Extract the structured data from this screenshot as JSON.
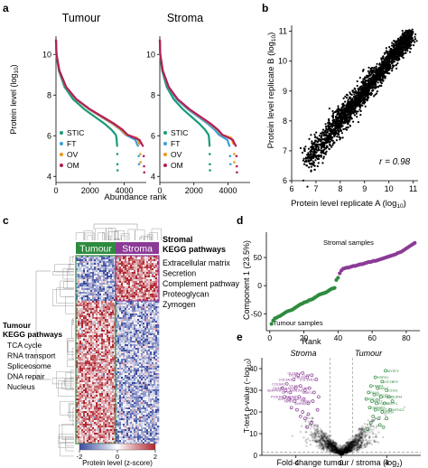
{
  "panels": {
    "a": {
      "label": "a"
    },
    "b": {
      "label": "b"
    },
    "c": {
      "label": "c"
    },
    "d": {
      "label": "d"
    },
    "e": {
      "label": "e"
    }
  },
  "colors": {
    "STIC": "#1a9a7a",
    "FT": "#3aa0d8",
    "OV": "#e8961e",
    "OM": "#b01f5a",
    "tumour": "#2e8b3e",
    "stroma": "#8b3a96",
    "heat_low": "#3a4ba0",
    "heat_mid": "#ffffff",
    "heat_high": "#b0252f"
  },
  "chart_data": [
    {
      "panel": "a",
      "type": "line",
      "subplots": [
        {
          "title": "Tumour",
          "series_end_rank": {
            "STIC": 4300,
            "FT": 5000,
            "OV": 5050,
            "OM": 5150
          }
        },
        {
          "title": "Stroma",
          "series_end_rank": {
            "STIC": 3500,
            "FT": 4250,
            "OV": 4450,
            "OM": 4500
          }
        }
      ],
      "ylabel": "Protein level (log",
      "ylabel_sub": "10",
      "ylabel_end": ")",
      "xlabel": "Abundance rank",
      "yticks": [
        4,
        6,
        8,
        10
      ],
      "xticks": [
        0,
        2000,
        4000
      ],
      "xlim": [
        0,
        5300
      ],
      "ylim": [
        3.7,
        10.9
      ],
      "curve": [
        [
          0,
          10.7
        ],
        [
          30,
          10.0
        ],
        [
          200,
          9.2
        ],
        [
          600,
          8.4
        ],
        [
          1200,
          7.8
        ],
        [
          2000,
          7.3
        ],
        [
          2800,
          6.9
        ],
        [
          3400,
          6.6
        ],
        [
          3900,
          6.3
        ],
        [
          4200,
          6.05
        ]
      ],
      "tails": {
        "STIC": [
          [
            4250,
            5.9
          ],
          [
            4300,
            5.5
          ],
          [
            4310,
            5.1
          ],
          [
            4320,
            4.6
          ],
          [
            4330,
            4.3
          ]
        ],
        "FT": [
          [
            4800,
            5.8
          ],
          [
            4950,
            5.5
          ],
          [
            5000,
            5.0
          ],
          [
            5020,
            4.6
          ]
        ],
        "OV": [
          [
            4850,
            5.9
          ],
          [
            5000,
            5.6
          ],
          [
            5050,
            5.1
          ],
          [
            5060,
            4.7
          ]
        ],
        "OM": [
          [
            4900,
            5.8
          ],
          [
            5100,
            5.5
          ],
          [
            5150,
            5.0
          ],
          [
            5170,
            4.5
          ],
          [
            5180,
            4.2
          ]
        ]
      },
      "legend": [
        "STIC",
        "FT",
        "OV",
        "OM"
      ],
      "legend_position": "bottom-left"
    },
    {
      "panel": "b",
      "type": "scatter",
      "xlabel": "Protein level replicate A (log",
      "xlabel_sub": "10",
      "xlabel_end": ")",
      "ylabel": "Protein level replicate B (log",
      "ylabel_sub": "10",
      "ylabel_end": ")",
      "xticks": [
        6,
        7,
        8,
        9,
        10,
        11
      ],
      "yticks": [
        6,
        7,
        8,
        9,
        10,
        11
      ],
      "xlim": [
        6,
        11.2
      ],
      "ylim": [
        6,
        11.2
      ],
      "annotation": "r = 0.98",
      "trend": {
        "from": 6.6,
        "to": 10.9,
        "spread": 0.2
      }
    },
    {
      "panel": "c",
      "type": "heatmap",
      "groups": [
        "Tumour",
        "Stroma"
      ],
      "stromal_title": "Stromal",
      "stromal_title2": "KEGG pathways",
      "stromal_pathways": [
        "Extracellular matrix",
        "Secretion",
        "Complement pathway",
        "Proteoglycan",
        "Zymogen"
      ],
      "tumour_title": "Tumour",
      "tumour_title2": "KEGG pathways",
      "tumour_pathways": [
        "TCA cycle",
        "RNA transport",
        "Spliceosome",
        "DNA repair",
        "Nucleus"
      ],
      "colorbar_ticks": [
        -2,
        0,
        2
      ],
      "colorbar_label": "Protein level (z-score)"
    },
    {
      "panel": "d",
      "type": "scatter",
      "ylabel": "Component 1 (23.5%)",
      "xlabel": "Rank",
      "xticks": [
        0,
        20,
        40,
        60,
        80
      ],
      "yticks": [
        -50,
        0,
        50
      ],
      "xlim": [
        -2,
        88
      ],
      "ylim": [
        -80,
        95
      ],
      "annotations": [
        "Stromal samples",
        "Tumour samples"
      ],
      "tumour_points": [
        [
          1,
          -68
        ],
        [
          2,
          -62
        ],
        [
          3,
          -58
        ],
        [
          4,
          -57
        ],
        [
          5,
          -55
        ],
        [
          6,
          -54
        ],
        [
          7,
          -52
        ],
        [
          8,
          -50
        ],
        [
          9,
          -48
        ],
        [
          10,
          -46
        ],
        [
          11,
          -45
        ],
        [
          12,
          -44
        ],
        [
          13,
          -43
        ],
        [
          14,
          -41
        ],
        [
          15,
          -39
        ],
        [
          16,
          -37
        ],
        [
          17,
          -35
        ],
        [
          18,
          -33
        ],
        [
          19,
          -32
        ],
        [
          20,
          -30
        ],
        [
          21,
          -29
        ],
        [
          22,
          -28
        ],
        [
          23,
          -26
        ],
        [
          24,
          -25
        ],
        [
          25,
          -24
        ],
        [
          26,
          -22
        ],
        [
          27,
          -20
        ],
        [
          28,
          -18
        ],
        [
          29,
          -16
        ],
        [
          30,
          -15
        ],
        [
          31,
          -14
        ],
        [
          32,
          -13
        ],
        [
          33,
          -12
        ],
        [
          34,
          -10
        ],
        [
          35,
          -8
        ],
        [
          36,
          -6
        ],
        [
          37,
          -5
        ],
        [
          38,
          -4
        ],
        [
          39,
          10
        ],
        [
          40,
          14
        ]
      ],
      "stroma_points": [
        [
          41,
          22
        ],
        [
          42,
          27
        ],
        [
          43,
          30
        ],
        [
          44,
          31
        ],
        [
          45,
          32
        ],
        [
          46,
          32
        ],
        [
          47,
          33
        ],
        [
          48,
          34
        ],
        [
          49,
          35
        ],
        [
          50,
          35
        ],
        [
          51,
          36
        ],
        [
          52,
          37
        ],
        [
          53,
          38
        ],
        [
          54,
          38
        ],
        [
          55,
          39
        ],
        [
          56,
          40
        ],
        [
          57,
          41
        ],
        [
          58,
          42
        ],
        [
          59,
          42
        ],
        [
          60,
          43
        ],
        [
          61,
          44
        ],
        [
          62,
          44
        ],
        [
          63,
          45
        ],
        [
          64,
          46
        ],
        [
          65,
          47
        ],
        [
          66,
          48
        ],
        [
          67,
          49
        ],
        [
          68,
          50
        ],
        [
          69,
          51
        ],
        [
          70,
          52
        ],
        [
          71,
          53
        ],
        [
          72,
          54
        ],
        [
          73,
          55
        ],
        [
          74,
          56
        ],
        [
          75,
          58
        ],
        [
          76,
          59
        ],
        [
          77,
          60
        ],
        [
          78,
          62
        ],
        [
          79,
          64
        ],
        [
          80,
          66
        ],
        [
          81,
          68
        ],
        [
          82,
          70
        ],
        [
          83,
          72
        ],
        [
          84,
          74
        ],
        [
          85,
          76
        ]
      ]
    },
    {
      "panel": "e",
      "type": "scatter",
      "xlabel": "Fold change tumour / stroma (log",
      "xlabel_sub": "2",
      "xlabel_end": ")",
      "ylabel": "T-test p-value (−log",
      "ylabel_sub": "10",
      "ylabel_end": ")",
      "xticks": [
        -4,
        0,
        4
      ],
      "yticks": [
        0,
        10,
        20,
        30,
        40
      ],
      "xlim": [
        -7,
        7
      ],
      "ylim": [
        0,
        45
      ],
      "group_titles": [
        "Stroma",
        "Tumour"
      ],
      "stroma_labels": [
        "COL6A2",
        "COL6A1",
        "DCN",
        "OLFML3",
        "FBLN1",
        "LUM",
        "COL14A1",
        "OGN",
        "SERPINF1",
        "DPT",
        "COL6A3",
        "VCAN",
        "EMILIN1",
        "VIM",
        "MMP2",
        "POSTN",
        "ASPN",
        "FBN1",
        "ABI3BP",
        "OLFML1",
        "MXRA5",
        "THBS2"
      ],
      "tumour_labels": [
        "MYEF2",
        "HSPD1",
        "IGF2BP2",
        "FABP4",
        "MAL2",
        "CDH1",
        "PAX8",
        "MUC16",
        "HSPE1",
        "CLDN4",
        "EPCAM",
        "KRT7",
        "FOLR1",
        "ESRP1",
        "CRABP2",
        "ASRGL1",
        "MSLN",
        "WFDC2"
      ],
      "stroma_points": [
        [
          -4.8,
          33
        ],
        [
          -4.2,
          35
        ],
        [
          -3.8,
          37
        ],
        [
          -3.4,
          38
        ],
        [
          -3.0,
          36
        ],
        [
          -2.6,
          37
        ],
        [
          -2.2,
          35
        ],
        [
          -5.2,
          31
        ],
        [
          -4.9,
          30
        ],
        [
          -4.5,
          29
        ],
        [
          -4.0,
          31
        ],
        [
          -3.6,
          32
        ],
        [
          -3.2,
          30
        ],
        [
          -2.8,
          31
        ],
        [
          -2.4,
          29
        ],
        [
          -5.0,
          27
        ],
        [
          -4.6,
          26
        ],
        [
          -4.1,
          25
        ],
        [
          -3.7,
          27
        ],
        [
          -3.3,
          26
        ],
        [
          -2.9,
          24
        ],
        [
          -2.5,
          25
        ],
        [
          -4.4,
          22
        ],
        [
          -3.9,
          21
        ],
        [
          -3.4,
          20
        ],
        [
          -2.9,
          19
        ],
        [
          -3.2,
          17
        ],
        [
          -3.6,
          18
        ],
        [
          -2.6,
          15
        ],
        [
          -3.0,
          13
        ],
        [
          -2.1,
          21
        ],
        [
          -2.0,
          27
        ]
      ],
      "tumour_points": [
        [
          3.9,
          39
        ],
        [
          3.0,
          36
        ],
        [
          3.6,
          34
        ],
        [
          2.6,
          32
        ],
        [
          3.2,
          31
        ],
        [
          4.0,
          30
        ],
        [
          2.4,
          29
        ],
        [
          2.9,
          28
        ],
        [
          3.5,
          27
        ],
        [
          4.2,
          27
        ],
        [
          2.2,
          26
        ],
        [
          2.7,
          25
        ],
        [
          3.1,
          24
        ],
        [
          3.8,
          24
        ],
        [
          2.5,
          22
        ],
        [
          3.0,
          21
        ],
        [
          3.6,
          20
        ],
        [
          4.3,
          21
        ],
        [
          2.8,
          18
        ],
        [
          3.3,
          17
        ],
        [
          4.0,
          17
        ],
        [
          2.6,
          15
        ],
        [
          3.4,
          14
        ],
        [
          2.3,
          12
        ],
        [
          4.5,
          25
        ],
        [
          3.7,
          13
        ]
      ]
    }
  ]
}
